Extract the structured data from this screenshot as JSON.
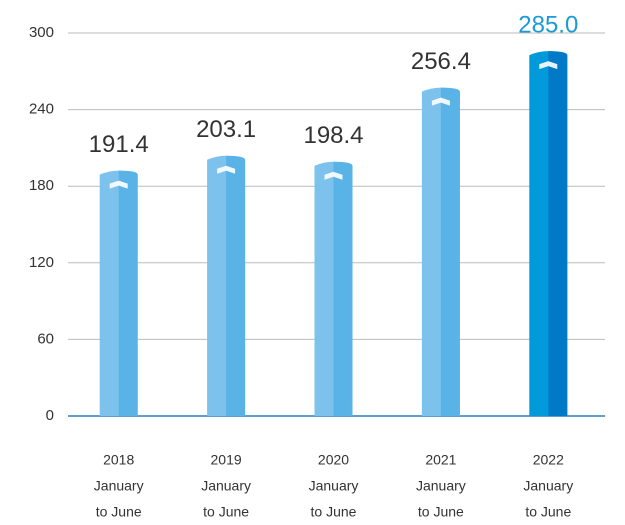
{
  "chart_data": {
    "type": "bar",
    "categories": [
      [
        "2018",
        "January",
        "to June"
      ],
      [
        "2019",
        "January",
        "to June"
      ],
      [
        "2020",
        "January",
        "to June"
      ],
      [
        "2021",
        "January",
        "to June"
      ],
      [
        "2022",
        "January",
        "to June"
      ]
    ],
    "values": [
      191.4,
      203.1,
      198.4,
      256.4,
      285.0
    ],
    "value_labels": [
      "191.4",
      "203.1",
      "198.4",
      "256.4",
      "285.0"
    ],
    "colors": [
      "#7cc2ec",
      "#7cc2ec",
      "#7cc2ec",
      "#7cc2ec",
      "#0099d9"
    ],
    "side_colors": [
      "#5ab3e6",
      "#5ab3e6",
      "#5ab3e6",
      "#5ab3e6",
      "#0079c6"
    ],
    "value_label_colors": [
      "#333333",
      "#333333",
      "#333333",
      "#333333",
      "#1a9ad6"
    ],
    "ylim": [
      0,
      300
    ],
    "yticks": [
      0,
      60,
      120,
      180,
      240,
      300
    ],
    "grid": true
  }
}
